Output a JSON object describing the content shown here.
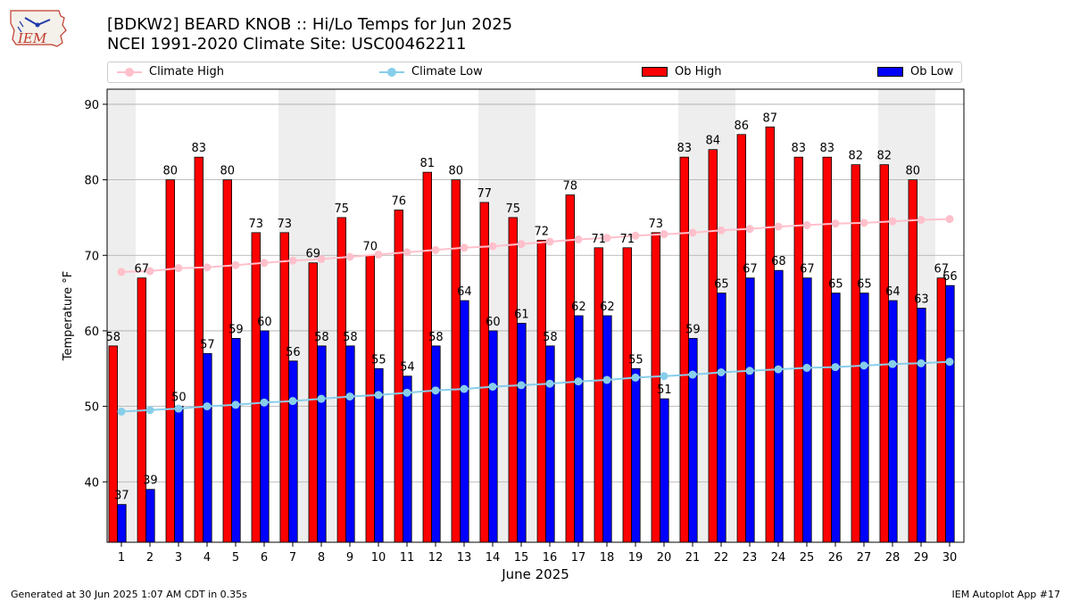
{
  "header": {
    "title_line1": "[BDKW2] BEARD KNOB :: Hi/Lo Temps for Jun 2025",
    "title_line2": "NCEI 1991-2020 Climate Site: USC00462211",
    "logo_text": "IEM"
  },
  "legend": {
    "items": [
      {
        "label": "Climate High"
      },
      {
        "label": "Climate Low"
      },
      {
        "label": "Ob High"
      },
      {
        "label": "Ob Low"
      }
    ],
    "placement": "top"
  },
  "colors": {
    "ob_high": "#ff0000",
    "ob_low": "#0000ff",
    "climate_high": "#ffc0cb",
    "climate_low": "#87ceeb",
    "weekend_shade": "#eeeeee",
    "grid": "#aaaaaa"
  },
  "footer": {
    "left": "Generated at 30 Jun 2025 1:07 AM CDT in 0.35s",
    "right": "IEM Autoplot App #17"
  },
  "chart_data": {
    "type": "bar",
    "title": "[BDKW2] BEARD KNOB :: Hi/Lo Temps for Jun 2025",
    "subtitle": "NCEI 1991-2020 Climate Site: USC00462211",
    "xlabel": "June 2025",
    "ylabel": "Temperature °F",
    "categories": [
      "1",
      "2",
      "3",
      "4",
      "5",
      "6",
      "7",
      "8",
      "9",
      "10",
      "11",
      "12",
      "13",
      "14",
      "15",
      "16",
      "17",
      "18",
      "19",
      "20",
      "21",
      "22",
      "23",
      "24",
      "25",
      "26",
      "27",
      "28",
      "29",
      "30"
    ],
    "ylim": [
      32,
      92
    ],
    "yticks": [
      40,
      50,
      60,
      70,
      80,
      90
    ],
    "grid": true,
    "shaded_weekend_days": [
      1,
      7,
      8,
      14,
      15,
      21,
      22,
      28,
      29
    ],
    "series": [
      {
        "name": "Ob High",
        "type": "bar",
        "values": [
          58,
          67,
          80,
          83,
          80,
          73,
          73,
          69,
          75,
          70,
          76,
          81,
          80,
          77,
          75,
          72,
          78,
          71,
          71,
          73,
          83,
          84,
          86,
          87,
          83,
          83,
          82,
          82,
          80,
          67
        ]
      },
      {
        "name": "Ob Low",
        "type": "bar",
        "values": [
          37,
          39,
          50,
          57,
          59,
          60,
          56,
          58,
          58,
          55,
          54,
          58,
          64,
          60,
          61,
          58,
          62,
          62,
          55,
          51,
          59,
          65,
          67,
          68,
          67,
          65,
          65,
          64,
          63,
          66
        ]
      },
      {
        "name": "Climate High",
        "type": "line",
        "values": [
          67.8,
          67.9,
          68.3,
          68.4,
          68.7,
          69.0,
          69.3,
          69.5,
          69.8,
          70.1,
          70.4,
          70.7,
          71.0,
          71.2,
          71.5,
          71.8,
          72.1,
          72.3,
          72.6,
          72.8,
          73.0,
          73.3,
          73.5,
          73.8,
          74.0,
          74.2,
          74.3,
          74.5,
          74.7,
          74.8
        ]
      },
      {
        "name": "Climate Low",
        "type": "line",
        "values": [
          49.3,
          49.5,
          49.7,
          50.0,
          50.2,
          50.5,
          50.7,
          51.0,
          51.3,
          51.5,
          51.8,
          52.1,
          52.3,
          52.6,
          52.8,
          53.0,
          53.3,
          53.5,
          53.8,
          54.0,
          54.2,
          54.5,
          54.7,
          54.9,
          55.1,
          55.2,
          55.4,
          55.6,
          55.7,
          55.9
        ]
      }
    ]
  }
}
